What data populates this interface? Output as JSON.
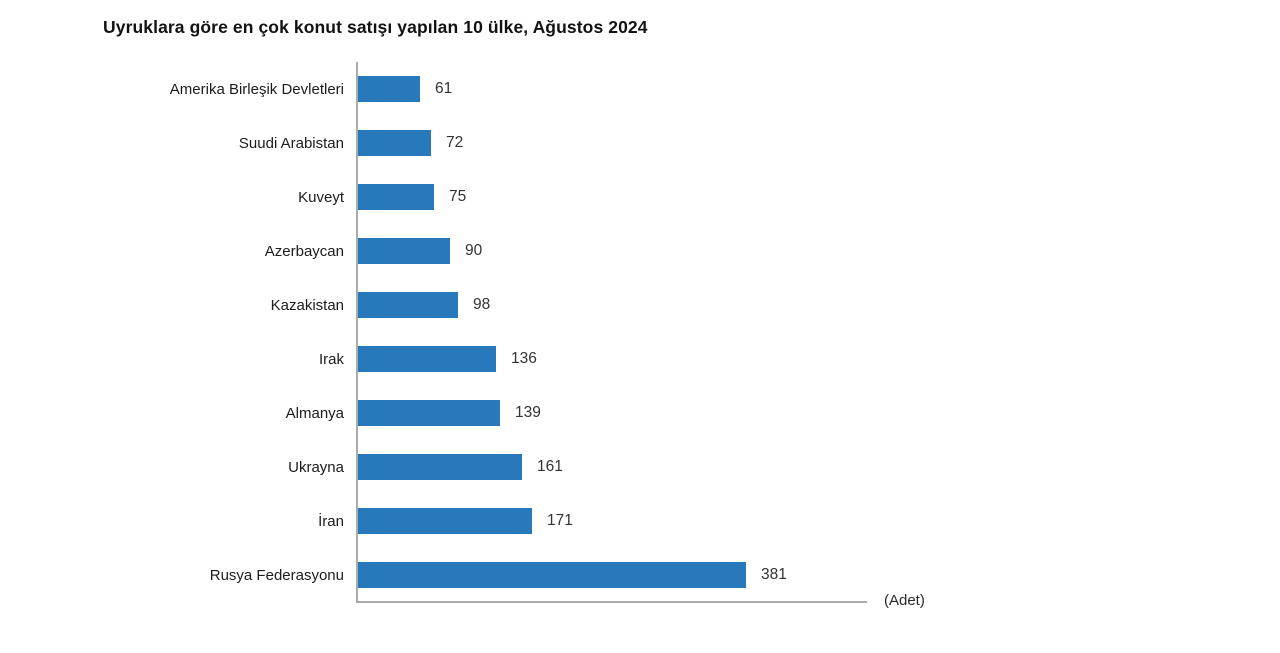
{
  "chart": {
    "title": "Uyruklara göre en çok konut satışı yapılan 10 ülke, Ağustos 2024",
    "unit_label": "(Adet)",
    "bar_color": "#2878bc",
    "axis_color": "#ababab"
  },
  "chart_data": {
    "type": "bar",
    "orientation": "horizontal",
    "title": "Uyruklara göre en çok konut satışı yapılan 10 ülke, Ağustos 2024",
    "categories": [
      "Amerika Birleşik Devletleri",
      "Suudi Arabistan",
      "Kuveyt",
      "Azerbaycan",
      "Kazakistan",
      "Irak",
      "Almanya",
      "Ukrayna",
      "İran",
      "Rusya Federasyonu"
    ],
    "values": [
      61,
      72,
      75,
      90,
      98,
      136,
      139,
      161,
      171,
      381
    ],
    "xlabel": "(Adet)",
    "ylabel": "",
    "xlim": [
      0,
      500
    ],
    "grid": false,
    "legend": false,
    "value_labels_shown": true
  }
}
